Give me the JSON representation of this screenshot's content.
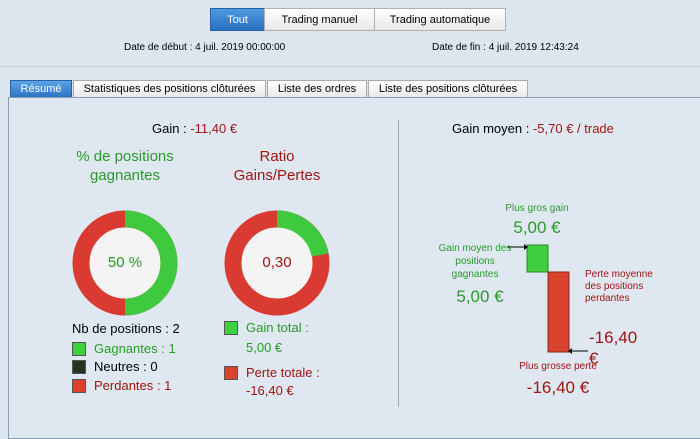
{
  "toolbar": {
    "buttons": [
      "Tout",
      "Trading manuel",
      "Trading automatique"
    ],
    "start_date": "Date de début :  4 juil. 2019 00:00:00",
    "end_date": "Date de fin :  4 juil. 2019 12:43:24"
  },
  "tabs": [
    "Résumé",
    "Statistiques des positions clôturées",
    "Liste des ordres",
    "Liste des positions clôturées"
  ],
  "summary": {
    "gain_label": "Gain :",
    "gain_value": "-11,40 €",
    "win_rate": {
      "title": "% de positions gagnantes",
      "value": "50 %"
    },
    "ratio": {
      "title": "Ratio Gains/Pertes",
      "value": "0,30"
    },
    "positions": {
      "total": "Nb de positions : 2",
      "winners": "Gagnantes : 1",
      "neutral": "Neutres : 0",
      "losers": "Perdantes : 1"
    },
    "totals": {
      "gain_label": "Gain total :",
      "gain_value": "5,00 €",
      "loss_label": "Perte totale :",
      "loss_value": "-16,40 €"
    },
    "average": {
      "label": "Gain moyen :",
      "value": "-5,70 € / trade"
    },
    "chart": {
      "max_gain_label": "Plus gros gain",
      "max_gain_value": "5,00 €",
      "avg_win_label": "Gain moyen des positions gagnantes",
      "avg_win_value": "5,00 €",
      "avg_loss_label": "Perte moyenne des positions perdantes",
      "avg_loss_value": "-16,40 €",
      "max_loss_label": "Plus grosse perte",
      "max_loss_value": "-16,40 €"
    }
  }
}
